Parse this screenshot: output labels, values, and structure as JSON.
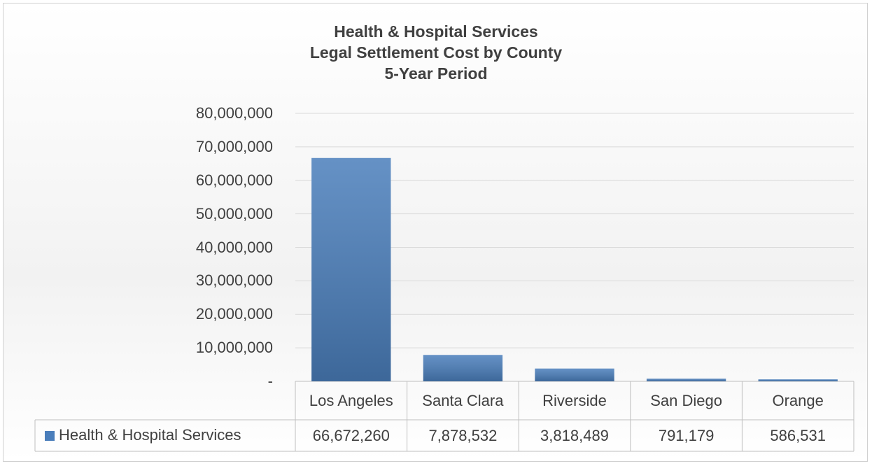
{
  "chart_data": {
    "type": "bar",
    "title": "Health & Hospital Services",
    "subtitle": [
      "Legal Settlement Cost by County",
      "5-Year Period"
    ],
    "categories": [
      "Los Angeles",
      "Santa Clara",
      "Riverside",
      "San Diego",
      "Orange"
    ],
    "series": [
      {
        "name": "Health & Hospital Services",
        "color": "#4a7ebb",
        "values": [
          66672260,
          7878532,
          3818489,
          791179,
          586531
        ],
        "value_labels": [
          "66,672,260",
          "7,878,532",
          "3,818,489",
          "791,179",
          "586,531"
        ]
      }
    ],
    "ylim": [
      0,
      80000000
    ],
    "yticks": [
      {
        "value": 0,
        "label": "-"
      },
      {
        "value": 10000000,
        "label": "10,000,000"
      },
      {
        "value": 20000000,
        "label": "20,000,000"
      },
      {
        "value": 30000000,
        "label": "30,000,000"
      },
      {
        "value": 40000000,
        "label": "40,000,000"
      },
      {
        "value": 50000000,
        "label": "50,000,000"
      },
      {
        "value": 60000000,
        "label": "60,000,000"
      },
      {
        "value": 70000000,
        "label": "70,000,000"
      },
      {
        "value": 80000000,
        "label": "80,000,000"
      }
    ],
    "grid": true
  }
}
